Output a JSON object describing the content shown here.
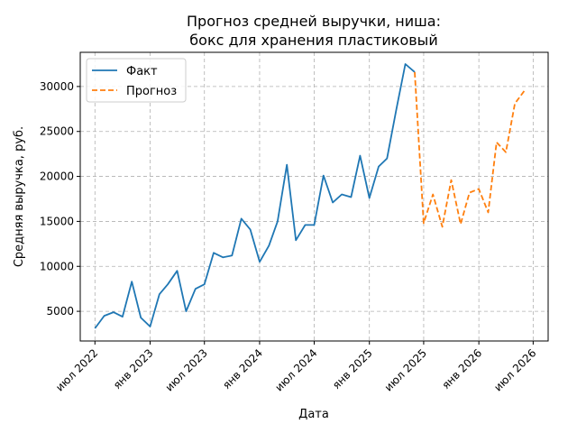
{
  "chart_data": {
    "type": "line",
    "title_lines": [
      "Прогноз средней выручки, ниша:",
      "бокс для хранения пластиковый"
    ],
    "xlabel": "Дата",
    "ylabel": "Средняя выручка, руб.",
    "xlim": [
      "2022-05-13",
      "2026-08-20"
    ],
    "ylim": [
      1700,
      33800
    ],
    "x_ticks": [
      {
        "date": "2022-07-01",
        "label": "июл 2022"
      },
      {
        "date": "2023-01-01",
        "label": "янв 2023"
      },
      {
        "date": "2023-07-01",
        "label": "июл 2023"
      },
      {
        "date": "2024-01-01",
        "label": "янв 2024"
      },
      {
        "date": "2024-07-01",
        "label": "июл 2024"
      },
      {
        "date": "2025-01-01",
        "label": "янв 2025"
      },
      {
        "date": "2025-07-01",
        "label": "июл 2025"
      },
      {
        "date": "2026-01-01",
        "label": "янв 2026"
      },
      {
        "date": "2026-07-01",
        "label": "июл 2026"
      }
    ],
    "y_ticks": [
      {
        "value": 5000,
        "label": "5000"
      },
      {
        "value": 10000,
        "label": "10000"
      },
      {
        "value": 15000,
        "label": "15000"
      },
      {
        "value": 20000,
        "label": "20000"
      },
      {
        "value": 25000,
        "label": "25000"
      },
      {
        "value": 30000,
        "label": "30000"
      }
    ],
    "grid": true,
    "legend_position": "top-left",
    "series": [
      {
        "name": "Факт",
        "color": "#1f77b4",
        "style": "solid",
        "x": [
          "2022-07-01",
          "2022-08-01",
          "2022-09-01",
          "2022-10-01",
          "2022-11-01",
          "2022-12-01",
          "2023-01-01",
          "2023-02-01",
          "2023-03-01",
          "2023-04-01",
          "2023-05-01",
          "2023-06-01",
          "2023-07-01",
          "2023-08-01",
          "2023-09-01",
          "2023-10-01",
          "2023-11-01",
          "2023-12-01",
          "2024-01-01",
          "2024-02-01",
          "2024-03-01",
          "2024-04-01",
          "2024-05-01",
          "2024-06-01",
          "2024-07-01",
          "2024-08-01",
          "2024-09-01",
          "2024-10-01",
          "2024-11-01",
          "2024-12-01",
          "2025-01-01",
          "2025-02-01",
          "2025-03-01",
          "2025-04-01",
          "2025-05-01",
          "2025-06-01"
        ],
        "y": [
          3100,
          4500,
          4900,
          4400,
          8300,
          4300,
          3300,
          6900,
          8000,
          9500,
          5000,
          7500,
          8000,
          11500,
          11000,
          11200,
          15300,
          14100,
          10500,
          12300,
          15000,
          21300,
          12900,
          14600,
          14600,
          20100,
          17100,
          18000,
          17700,
          22300,
          17600,
          21100,
          22000,
          27500,
          32500,
          31600
        ]
      },
      {
        "name": "Прогноз",
        "color": "#ff7f0e",
        "style": "dashed",
        "x": [
          "2025-06-01",
          "2025-07-01",
          "2025-08-01",
          "2025-09-01",
          "2025-10-01",
          "2025-11-01",
          "2025-12-01",
          "2026-01-01",
          "2026-02-01",
          "2026-03-01",
          "2026-04-01",
          "2026-05-01",
          "2026-06-01"
        ],
        "y": [
          31600,
          14800,
          18000,
          14400,
          19600,
          14700,
          18200,
          18600,
          16000,
          23800,
          22700,
          28100,
          29500
        ]
      }
    ]
  }
}
